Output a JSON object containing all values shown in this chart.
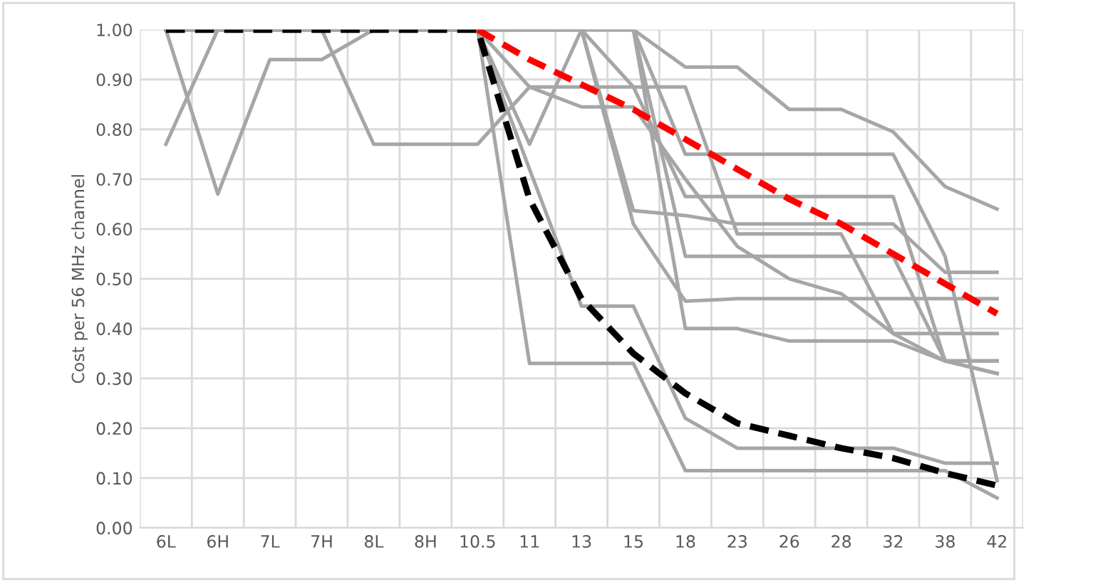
{
  "chart_data": {
    "type": "line",
    "ylabel": "Cost per 56 MHz channel",
    "categories": [
      "6L",
      "6H",
      "7L",
      "7H",
      "8L",
      "8H",
      "10.5",
      "11",
      "13",
      "15",
      "18",
      "23",
      "26",
      "28",
      "32",
      "38",
      "42"
    ],
    "ylim": [
      0,
      1
    ],
    "yticks": [
      {
        "value": 0,
        "label": "0.00"
      },
      {
        "value": 0.1,
        "label": "0.10"
      },
      {
        "value": 0.2,
        "label": "0.20"
      },
      {
        "value": 0.3,
        "label": "0.30"
      },
      {
        "value": 0.4,
        "label": "0.40"
      },
      {
        "value": 0.5,
        "label": "0.50"
      },
      {
        "value": 0.6,
        "label": "0.60"
      },
      {
        "value": 0.7,
        "label": "0.70"
      },
      {
        "value": 0.8,
        "label": "0.80"
      },
      {
        "value": 0.9,
        "label": "0.90"
      },
      {
        "value": 1,
        "label": "1.00"
      }
    ],
    "grid": true,
    "marker": "none",
    "line_style": "solid",
    "series": [
      {
        "color": "#a6a6a6",
        "values": [
          0.77,
          1,
          1,
          1,
          1,
          1,
          1,
          1,
          1,
          1,
          0.925,
          0.925,
          0.84,
          0.84,
          0.795,
          0.685,
          0.64
        ]
      },
      {
        "color": "#a6a6a6",
        "values": [
          1,
          0.67,
          0.94,
          0.94,
          1,
          1,
          1,
          1,
          1,
          1,
          0.75,
          0.75,
          0.75,
          0.75,
          0.75,
          0.545,
          0.095
        ]
      },
      {
        "color": "#a6a6a6",
        "values": [
          1,
          1,
          1,
          1,
          0.77,
          0.77,
          0.77,
          0.885,
          0.885,
          0.885,
          0.885,
          0.59,
          0.59,
          0.59,
          0.39,
          0.39,
          0.39
        ]
      },
      {
        "color": "#a6a6a6",
        "values": [
          1,
          1,
          1,
          1,
          1,
          1,
          1,
          0.77,
          1,
          0.885,
          0.665,
          0.665,
          0.665,
          0.665,
          0.665,
          0.335,
          0.335
        ]
      },
      {
        "color": "#a6a6a6",
        "values": [
          1,
          1,
          1,
          1,
          1,
          1,
          1,
          1,
          1,
          0.637,
          0.627,
          0.61,
          0.61,
          0.61,
          0.61,
          0.513,
          0.513
        ]
      },
      {
        "color": "#a6a6a6",
        "values": [
          1,
          1,
          1,
          1,
          1,
          1,
          1,
          1,
          1,
          0.61,
          0.455,
          0.46,
          0.46,
          0.46,
          0.46,
          0.46,
          0.46
        ]
      },
      {
        "color": "#a6a6a6",
        "values": [
          1,
          1,
          1,
          1,
          1,
          1,
          1,
          0.885,
          0.845,
          0.845,
          0.7,
          0.565,
          0.5,
          0.47,
          0.39,
          0.335,
          0.31
        ]
      },
      {
        "color": "#a6a6a6",
        "values": [
          1,
          1,
          1,
          1,
          1,
          1,
          1,
          1,
          1,
          1,
          0.545,
          0.545,
          0.545,
          0.545,
          0.545,
          0.335,
          0.31
        ]
      },
      {
        "color": "#a6a6a6",
        "values": [
          1,
          1,
          1,
          1,
          1,
          1,
          1,
          1,
          1,
          1,
          0.4,
          0.4,
          0.375,
          0.375,
          0.375,
          0.335,
          0.335
        ]
      },
      {
        "color": "#a6a6a6",
        "values": [
          1,
          1,
          1,
          1,
          1,
          1,
          1,
          0.72,
          0.445,
          0.445,
          0.22,
          0.16,
          0.16,
          0.16,
          0.16,
          0.13,
          0.13
        ]
      },
      {
        "color": "#a6a6a6",
        "values": [
          1,
          1,
          1,
          1,
          1,
          1,
          1,
          0.33,
          0.33,
          0.33,
          0.115,
          0.115,
          0.115,
          0.115,
          0.115,
          0.115,
          0.06
        ]
      },
      {
        "color": "#ff0000",
        "line_style": "dashed",
        "values": [
          null,
          null,
          null,
          null,
          null,
          null,
          1,
          0.94,
          0.89,
          0.84,
          0.78,
          0.72,
          0.66,
          0.61,
          0.55,
          0.49,
          0.43
        ]
      },
      {
        "color": "#000000",
        "line_style": "dashed",
        "values": [
          1,
          1,
          1,
          1,
          1,
          1,
          1,
          0.66,
          0.46,
          0.35,
          0.27,
          0.21,
          0.185,
          0.16,
          0.14,
          0.11,
          0.085
        ]
      }
    ]
  }
}
